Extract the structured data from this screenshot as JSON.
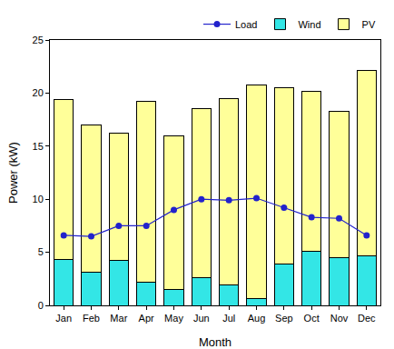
{
  "chart_data": {
    "type": "bar",
    "x_label": "Month",
    "y_label": "Power (kW)",
    "categories": [
      "Jan",
      "Feb",
      "Mar",
      "Apr",
      "May",
      "Jun",
      "Jul",
      "Aug",
      "Sep",
      "Oct",
      "Nov",
      "Dec"
    ],
    "series": [
      {
        "name": "PV",
        "type": "bar",
        "color": "#ffff99",
        "values": [
          15.1,
          13.9,
          12.0,
          17.0,
          14.5,
          15.9,
          17.6,
          20.2,
          16.6,
          15.1,
          13.8,
          17.4
        ]
      },
      {
        "name": "Wind",
        "type": "bar",
        "color": "#33e6e6",
        "values": [
          4.3,
          3.1,
          4.2,
          2.2,
          1.5,
          2.6,
          1.9,
          0.6,
          3.9,
          5.1,
          4.5,
          4.7
        ]
      },
      {
        "name": "Load",
        "type": "line",
        "color": "#2222cc",
        "marker": "circle",
        "line_style": "solid",
        "values": [
          6.6,
          6.5,
          7.5,
          7.5,
          9.0,
          10.0,
          9.9,
          10.1,
          9.2,
          8.3,
          8.2,
          6.6
        ]
      }
    ],
    "stacked": true,
    "ylim": [
      0,
      25
    ],
    "yticks": [
      0,
      5,
      10,
      15,
      20,
      25
    ],
    "grid": false,
    "legend": "top right"
  }
}
